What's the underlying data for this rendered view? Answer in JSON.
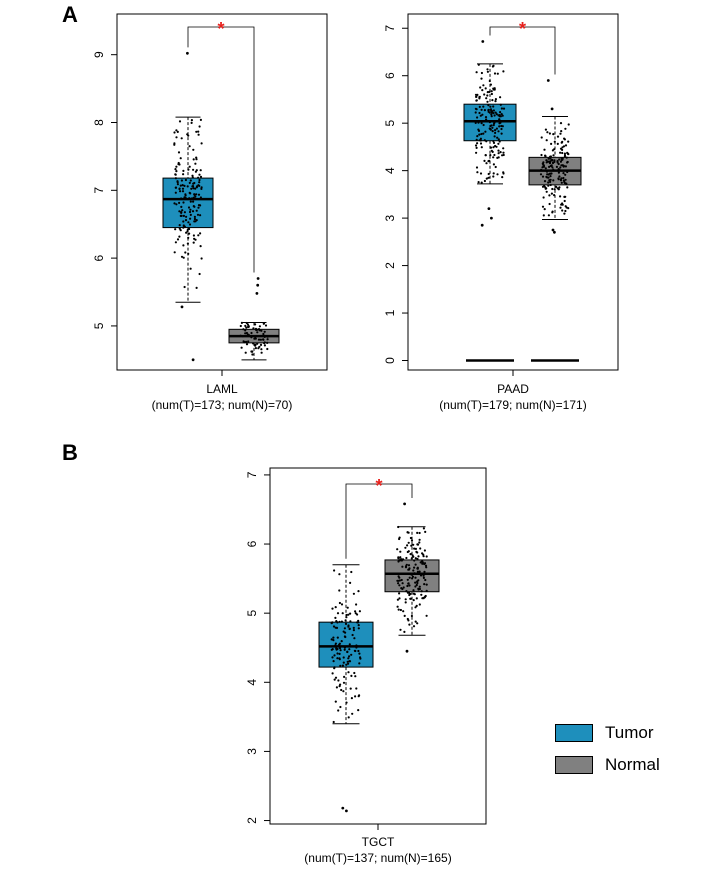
{
  "panel_letters": {
    "a": "A",
    "b": "B"
  },
  "legend": [
    {
      "label": "Tumor",
      "color": "#1e8fbc"
    },
    {
      "label": "Normal",
      "color": "#808080"
    }
  ],
  "significance_marker": "*",
  "colors": {
    "tumor": "#1e8fbc",
    "normal": "#808080",
    "star": "#e8201c"
  },
  "chart_data": [
    {
      "type": "box",
      "panel": "A",
      "xlabel": "LAML",
      "sublabel": "(num(T)=173; num(N)=70)",
      "ylim": [
        4.35,
        9.6
      ],
      "yticks": [
        5,
        6,
        7,
        8,
        9
      ],
      "significant": true,
      "series": [
        {
          "name": "Tumor",
          "n": 173,
          "whisker_low": 5.35,
          "q1": 6.45,
          "median": 6.87,
          "q3": 7.18,
          "whisker_high": 8.08,
          "outliers": [
            9.02,
            5.28,
            4.5
          ]
        },
        {
          "name": "Normal",
          "n": 70,
          "whisker_low": 4.5,
          "q1": 4.75,
          "median": 4.85,
          "q3": 4.95,
          "whisker_high": 5.05,
          "outliers": [
            5.7,
            5.6,
            5.48
          ]
        }
      ]
    },
    {
      "type": "box",
      "panel": "A",
      "xlabel": "PAAD",
      "sublabel": "(num(T)=179; num(N)=171)",
      "ylim": [
        -0.2,
        7.3
      ],
      "yticks": [
        0,
        1,
        2,
        3,
        4,
        5,
        6,
        7
      ],
      "significant": true,
      "series": [
        {
          "name": "Tumor",
          "n": 179,
          "whisker_low": 3.72,
          "q1": 4.63,
          "median": 5.04,
          "q3": 5.4,
          "whisker_high": 6.25,
          "outliers": [
            6.72,
            3.2,
            3.0,
            2.85,
            0.0
          ]
        },
        {
          "name": "Normal",
          "n": 171,
          "whisker_low": 2.97,
          "q1": 3.7,
          "median": 4.0,
          "q3": 4.28,
          "whisker_high": 5.14,
          "outliers": [
            5.9,
            5.3,
            2.75,
            2.7,
            0.0
          ]
        }
      ]
    },
    {
      "type": "box",
      "panel": "B",
      "xlabel": "TGCT",
      "sublabel": "(num(T)=137; num(N)=165)",
      "ylim": [
        1.95,
        7.1
      ],
      "yticks": [
        2,
        3,
        4,
        5,
        6,
        7
      ],
      "significant": true,
      "series": [
        {
          "name": "Tumor",
          "n": 137,
          "whisker_low": 3.4,
          "q1": 4.22,
          "median": 4.52,
          "q3": 4.87,
          "whisker_high": 5.7,
          "outliers": [
            2.18,
            2.14
          ]
        },
        {
          "name": "Normal",
          "n": 165,
          "whisker_low": 4.68,
          "q1": 5.31,
          "median": 5.57,
          "q3": 5.77,
          "whisker_high": 6.25,
          "outliers": [
            6.58,
            4.45
          ]
        }
      ]
    }
  ]
}
